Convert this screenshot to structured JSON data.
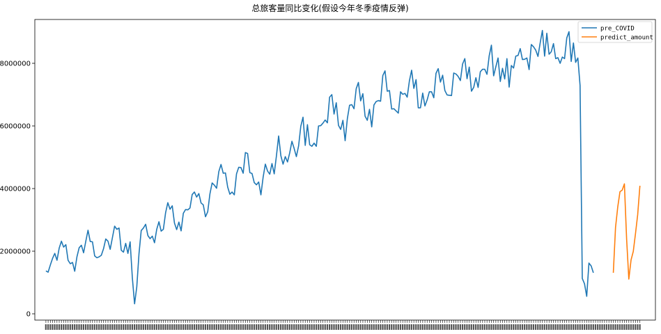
{
  "chart_data": {
    "type": "line",
    "title": "总旅客量同比变化(假设今年冬季疫情反弹)",
    "xlabel": "",
    "ylabel": "",
    "ylim": [
      -200000,
      9400000
    ],
    "yticks": [
      0,
      2000000,
      4000000,
      6000000,
      8000000
    ],
    "ytick_labels": [
      "0",
      "2000000",
      "4000000",
      "6000000",
      "8000000"
    ],
    "grid": false,
    "legend_position": "top-right",
    "x_tick_labels_note": "dense overlapping monthly date labels (unreadable)",
    "x_range": [
      -5,
      275
    ],
    "series": [
      {
        "name": "pre_COVID",
        "color": "#1f77b4",
        "x_start": 0,
        "values": [
          1370000,
          1330000,
          1560000,
          1770000,
          1930000,
          1710000,
          2100000,
          2320000,
          2130000,
          2210000,
          1710000,
          1600000,
          1640000,
          1360000,
          1820000,
          2110000,
          2190000,
          1950000,
          2320000,
          2670000,
          2310000,
          2300000,
          1850000,
          1790000,
          1820000,
          1870000,
          2080000,
          2390000,
          2320000,
          2060000,
          2430000,
          2800000,
          2700000,
          2740000,
          2030000,
          1970000,
          2250000,
          1930000,
          2300000,
          1150000,
          320000,
          860000,
          1920000,
          2660000,
          2740000,
          2860000,
          2500000,
          2400000,
          2480000,
          2270000,
          2700000,
          2940000,
          2640000,
          2700000,
          3230000,
          3550000,
          3340000,
          3450000,
          2900000,
          2690000,
          2930000,
          2650000,
          3210000,
          3330000,
          3320000,
          3380000,
          3810000,
          3890000,
          3730000,
          3840000,
          3540000,
          3480000,
          3100000,
          3260000,
          3830000,
          4180000,
          4110000,
          4010000,
          4540000,
          4770000,
          4490000,
          4500000,
          4050000,
          3820000,
          3890000,
          3800000,
          4470000,
          4680000,
          4670000,
          4490000,
          5150000,
          5120000,
          4510000,
          4480000,
          4190000,
          4120000,
          4210000,
          3800000,
          4360000,
          4780000,
          4560000,
          4460000,
          4800000,
          4470000,
          5040000,
          5680000,
          5050000,
          4780000,
          5020000,
          4850000,
          5140000,
          5510000,
          5280000,
          5020000,
          5360000,
          5990000,
          6280000,
          5380000,
          6040000,
          5400000,
          5350000,
          5450000,
          5350000,
          6000000,
          6010000,
          6090000,
          6190000,
          6100000,
          6920000,
          7000000,
          6380000,
          6740000,
          6020000,
          5890000,
          6180000,
          5530000,
          6230000,
          6660000,
          6680000,
          6550000,
          7190000,
          7390000,
          6800000,
          7030000,
          6310000,
          6180000,
          6530000,
          5970000,
          6670000,
          6780000,
          6810000,
          6790000,
          7610000,
          7760000,
          7110000,
          7130000,
          6540000,
          6550000,
          6480000,
          6410000,
          7090000,
          7010000,
          7040000,
          6920000,
          7440000,
          7780000,
          7200000,
          7480000,
          6580000,
          6580000,
          7050000,
          6640000,
          6830000,
          7090000,
          7090000,
          6900000,
          7680000,
          7830000,
          7400000,
          7620000,
          7130000,
          6990000,
          6980000,
          6970000,
          7690000,
          7660000,
          7580000,
          7450000,
          7980000,
          8150000,
          7510000,
          7880000,
          7110000,
          7230000,
          7540000,
          7230000,
          7730000,
          7810000,
          7810000,
          7650000,
          8240000,
          8580000,
          7600000,
          7890000,
          8170000,
          7420000,
          7840000,
          7500000,
          8150000,
          7240000,
          7930000,
          7850000,
          8230000,
          8250000,
          8470000,
          8120000,
          8130000,
          8170000,
          7800000,
          8600000,
          8530000,
          8420000,
          8220000,
          8650000,
          9050000,
          8230000,
          8960000,
          8290000,
          8370000,
          8630000,
          8150000,
          8180000,
          8000000,
          8200000,
          8150000,
          8810000,
          9010000,
          8060000,
          8650000,
          8030000,
          8170000,
          7290000,
          1130000,
          960000,
          560000,
          1620000,
          1530000,
          1310000
        ]
      },
      {
        "name": "predict_amount",
        "color": "#ff7f0e",
        "x_start": 256,
        "values": [
          1310000,
          2760000,
          3410000,
          3900000,
          3950000,
          4150000,
          2390000,
          1110000,
          1720000,
          1990000,
          2560000,
          3170000,
          4090000
        ]
      }
    ]
  }
}
